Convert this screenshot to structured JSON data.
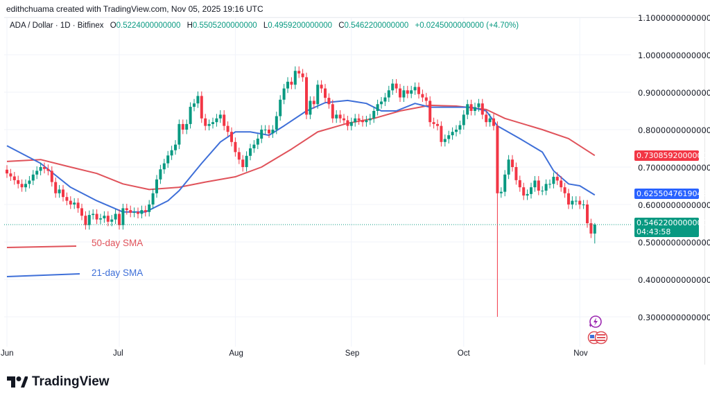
{
  "credit": "edithchuama created with TradingView.com, Nov 05, 2025 19:16 UTC",
  "legend": {
    "symbol": "ADA / Dollar · 1D · Bitfinex",
    "open_label": "O",
    "open": "0.5224000000000",
    "high_label": "H",
    "high": "0.5505200000000",
    "low_label": "L",
    "low": "0.4959200000000",
    "close_label": "C",
    "close": "0.5462200000000",
    "change": "+0.0245000000000 (+4.70%)"
  },
  "price_axis": [
    "1.1000000000000",
    "1.0000000000000",
    "0.9000000000000",
    "0.8000000000000",
    "0.7000000000000",
    "0.6000000000000",
    "0.5000000000000",
    "0.4000000000000",
    "0.3000000000000"
  ],
  "tags": {
    "sma50": "0.7308592000000",
    "sma21": "0.6255047619048",
    "last_price": "0.5462200000000",
    "countdown": "04:43:58"
  },
  "x_axis": [
    "Jun",
    "Jul",
    "Aug",
    "Sep",
    "Oct",
    "Nov"
  ],
  "annotations": {
    "sma50": "50-day SMA",
    "sma21": "21-day SMA"
  },
  "logo": "TradingView",
  "icons": {
    "logo": "tradingview-logo-icon",
    "events": "lightning-icon",
    "economic": "us-flag-icon"
  },
  "colors": {
    "up": "#089981",
    "down": "#f23645",
    "sma50": "#e0525a",
    "sma21": "#3e6fd8",
    "last": "#089981",
    "grid": "#f0f3fa"
  },
  "chart_data": {
    "type": "candlestick",
    "interval": "1D",
    "ylim": [
      0.25,
      1.1
    ],
    "x_ticks": [
      "Jun",
      "Jul",
      "Aug",
      "Sep",
      "Oct",
      "Nov"
    ],
    "closes": [
      0.683,
      0.675,
      0.665,
      0.655,
      0.646,
      0.655,
      0.664,
      0.68,
      0.69,
      0.7,
      0.695,
      0.69,
      0.66,
      0.63,
      0.64,
      0.62,
      0.61,
      0.6,
      0.605,
      0.59,
      0.57,
      0.545,
      0.572,
      0.575,
      0.56,
      0.563,
      0.57,
      0.554,
      0.56,
      0.575,
      0.545,
      0.59,
      0.585,
      0.578,
      0.58,
      0.575,
      0.585,
      0.58,
      0.6,
      0.63,
      0.667,
      0.694,
      0.71,
      0.731,
      0.745,
      0.76,
      0.815,
      0.8,
      0.815,
      0.861,
      0.87,
      0.89,
      0.83,
      0.81,
      0.815,
      0.82,
      0.83,
      0.84,
      0.81,
      0.794,
      0.767,
      0.74,
      0.72,
      0.7,
      0.73,
      0.75,
      0.76,
      0.776,
      0.8,
      0.8,
      0.79,
      0.8,
      0.836,
      0.88,
      0.91,
      0.928,
      0.92,
      0.957,
      0.95,
      0.94,
      0.84,
      0.877,
      0.868,
      0.92,
      0.91,
      0.885,
      0.868,
      0.83,
      0.84,
      0.83,
      0.825,
      0.81,
      0.82,
      0.83,
      0.825,
      0.82,
      0.825,
      0.83,
      0.85,
      0.868,
      0.875,
      0.886,
      0.905,
      0.923,
      0.91,
      0.886,
      0.905,
      0.896,
      0.905,
      0.914,
      0.895,
      0.886,
      0.877,
      0.82,
      0.815,
      0.81,
      0.767,
      0.775,
      0.785,
      0.794,
      0.8,
      0.812,
      0.84,
      0.868,
      0.85,
      0.86,
      0.87,
      0.84,
      0.82,
      0.83,
      0.81,
      0.63,
      0.634,
      0.68,
      0.72,
      0.7,
      0.665,
      0.646,
      0.624,
      0.628,
      0.646,
      0.664,
      0.637,
      0.637,
      0.655,
      0.655,
      0.674,
      0.664,
      0.646,
      0.63,
      0.6,
      0.61,
      0.61,
      0.6,
      0.6,
      0.55,
      0.5224,
      0.5462
    ],
    "wick_overrides": [
      {
        "date": "Oct 10",
        "low": 0.3
      },
      {
        "date": "Nov 5",
        "high": 0.55052,
        "low": 0.49592
      }
    ],
    "series": [
      {
        "name": "50-day SMA",
        "points": [
          [
            "Jun 1",
            0.715
          ],
          [
            "Jun 10",
            0.72
          ],
          [
            "Jun 18",
            0.7
          ],
          [
            "Jun 25",
            0.683
          ],
          [
            "Jul 2",
            0.655
          ],
          [
            "Jul 9",
            0.64
          ],
          [
            "Jul 17",
            0.646
          ],
          [
            "Jul 24",
            0.66
          ],
          [
            "Aug 1",
            0.674
          ],
          [
            "Aug 8",
            0.7
          ],
          [
            "Aug 16",
            0.748
          ],
          [
            "Aug 23",
            0.794
          ],
          [
            "Aug 31",
            0.817
          ],
          [
            "Sep 7",
            0.83
          ],
          [
            "Sep 14",
            0.85
          ],
          [
            "Sep 22",
            0.865
          ],
          [
            "Sep 29",
            0.863
          ],
          [
            "Oct 7",
            0.854
          ],
          [
            "Oct 12",
            0.83
          ],
          [
            "Oct 22",
            0.8
          ],
          [
            "Oct 29",
            0.776
          ],
          [
            "Nov 5",
            0.7309
          ]
        ]
      },
      {
        "name": "21-day SMA",
        "points": [
          [
            "Jun 1",
            0.757
          ],
          [
            "Jun 10",
            0.71
          ],
          [
            "Jun 18",
            0.646
          ],
          [
            "Jun 25",
            0.61
          ],
          [
            "Jul 2",
            0.58
          ],
          [
            "Jul 8",
            0.58
          ],
          [
            "Jul 14",
            0.61
          ],
          [
            "Jul 17",
            0.637
          ],
          [
            "Jul 23",
            0.71
          ],
          [
            "Jul 28",
            0.767
          ],
          [
            "Aug 1",
            0.794
          ],
          [
            "Aug 5",
            0.794
          ],
          [
            "Aug 10",
            0.785
          ],
          [
            "Aug 14",
            0.81
          ],
          [
            "Aug 20",
            0.85
          ],
          [
            "Aug 25",
            0.872
          ],
          [
            "Aug 31",
            0.878
          ],
          [
            "Sep 5",
            0.87
          ],
          [
            "Sep 9",
            0.85
          ],
          [
            "Sep 13",
            0.85
          ],
          [
            "Sep 18",
            0.87
          ],
          [
            "Sep 22",
            0.86
          ],
          [
            "Sep 27",
            0.86
          ],
          [
            "Oct 3",
            0.86
          ],
          [
            "Oct 7",
            0.85
          ],
          [
            "Oct 10",
            0.81
          ],
          [
            "Oct 16",
            0.776
          ],
          [
            "Oct 22",
            0.74
          ],
          [
            "Oct 25",
            0.69
          ],
          [
            "Oct 29",
            0.655
          ],
          [
            "Nov 1",
            0.65
          ],
          [
            "Nov 5",
            0.6255
          ]
        ]
      }
    ],
    "last_price": 0.54622
  }
}
